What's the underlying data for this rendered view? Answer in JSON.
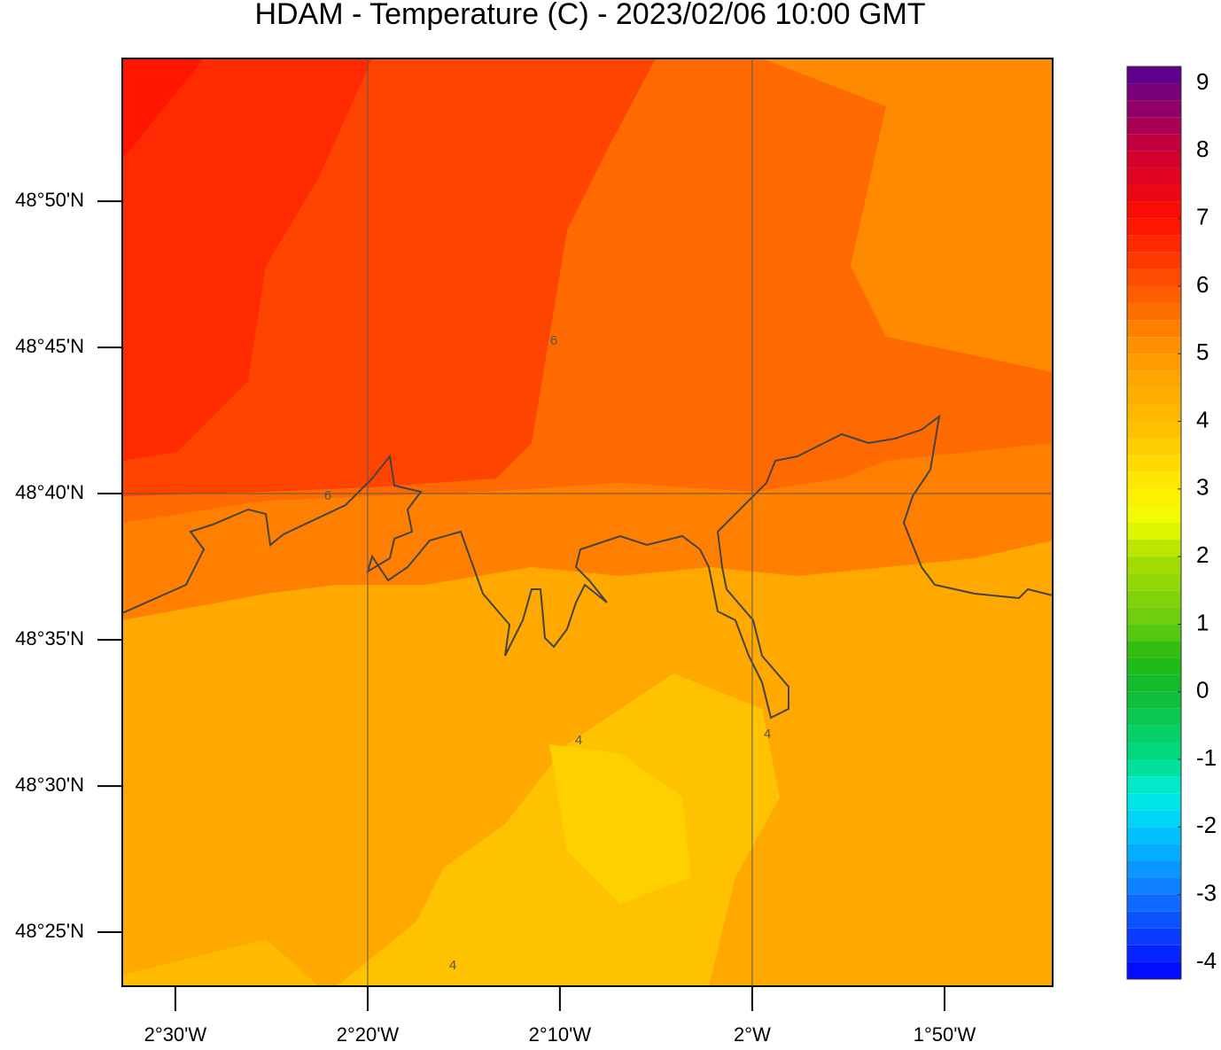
{
  "chart_data": {
    "type": "map",
    "title": "HDAM - Temperature (C)  -  2023/02/06  10:00 GMT",
    "xlim": [
      -2.546,
      -1.7396
    ],
    "ylim": [
      48.3859,
      48.9147
    ],
    "xticks": [
      {
        "value": -2.5,
        "label": "2°30'W"
      },
      {
        "value": -2.3333,
        "label": "2°20'W"
      },
      {
        "value": -2.1667,
        "label": "2°10'W"
      },
      {
        "value": -2,
        "label": "2°W"
      },
      {
        "value": -1.8333,
        "label": "1°50'W"
      }
    ],
    "yticks": [
      {
        "value": 48.8333,
        "label": "48°50'N"
      },
      {
        "value": 48.75,
        "label": "48°45'N"
      },
      {
        "value": 48.6667,
        "label": "48°40'N"
      },
      {
        "value": 48.5833,
        "label": "48°35'N"
      },
      {
        "value": 48.5,
        "label": "48°30'N"
      },
      {
        "value": 48.4167,
        "label": "48°25'N"
      }
    ],
    "x_grid": [
      -2.3333,
      -2
    ],
    "y_grid": [
      48.6667
    ],
    "contour_labels": [
      "6",
      "6",
      "4",
      "4",
      "4"
    ],
    "colorbar": {
      "range": [
        -4.25,
        9.25
      ],
      "step": 0.25,
      "ticks": [
        9,
        8,
        7,
        6,
        5,
        4,
        3,
        2,
        1,
        0,
        -1,
        -2,
        -3,
        -4
      ],
      "stops": [
        [
          -4.25,
          "#0000ff"
        ],
        [
          -3,
          "#1177ff"
        ],
        [
          -2,
          "#00ccff"
        ],
        [
          -1.5,
          "#00eedd"
        ],
        [
          -1,
          "#00dd88"
        ],
        [
          0,
          "#11bb33"
        ],
        [
          0.5,
          "#22bb11"
        ],
        [
          1,
          "#66cc11"
        ],
        [
          2,
          "#aadd00"
        ],
        [
          2.5,
          "#eeff00"
        ],
        [
          3,
          "#ffee00"
        ],
        [
          4,
          "#ffbb00"
        ],
        [
          5,
          "#ff9900"
        ],
        [
          6,
          "#ff5500"
        ],
        [
          7,
          "#ff0d00"
        ],
        [
          8,
          "#cc0033"
        ],
        [
          9.25,
          "#550099"
        ]
      ]
    }
  }
}
